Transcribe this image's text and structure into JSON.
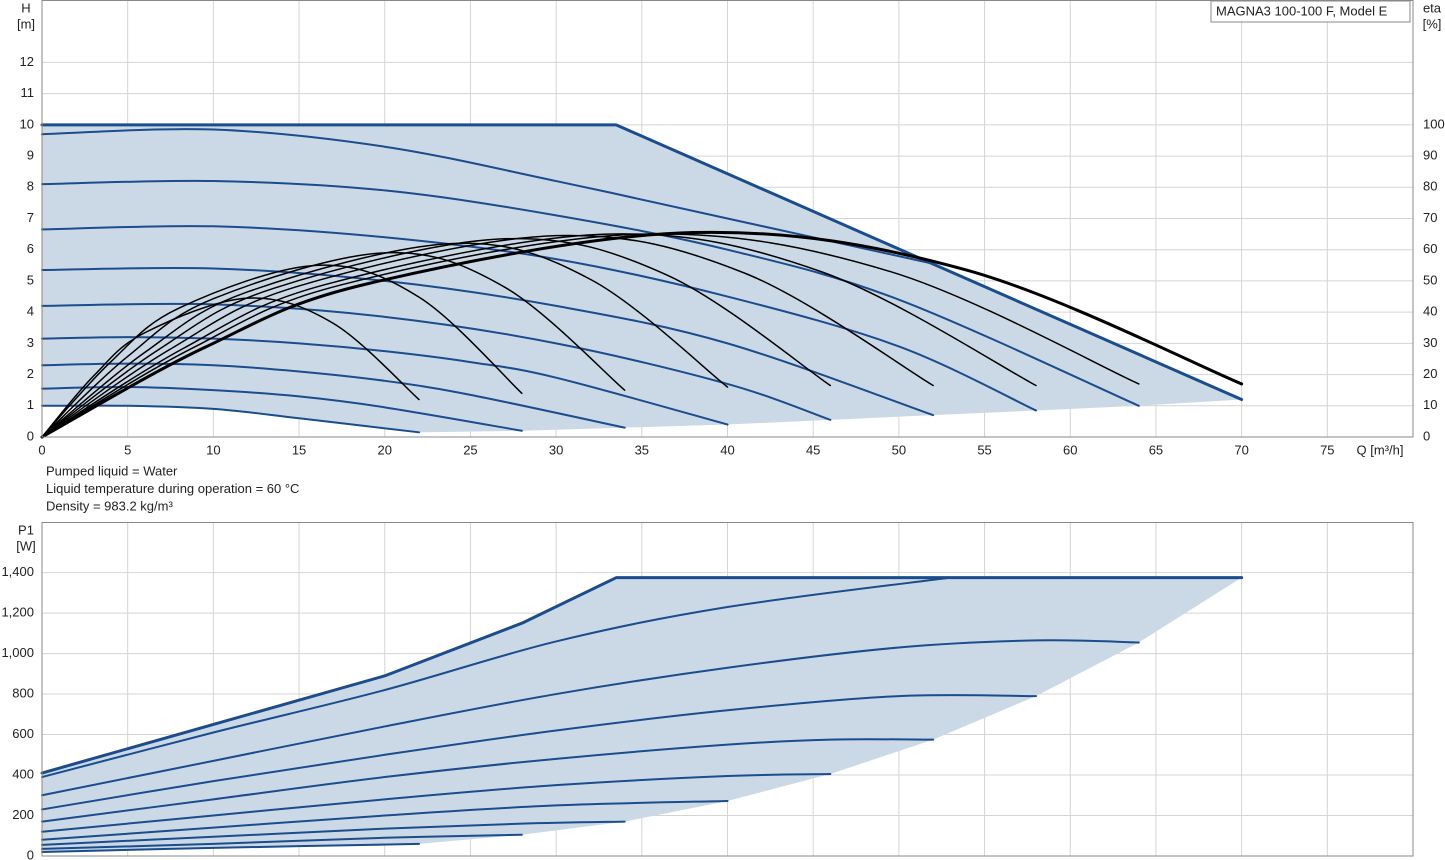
{
  "chart_data": [
    {
      "type": "line",
      "box_label": "MAGNA3 100-100 F, Model E",
      "ylabel": "H",
      "yunit": "[m]",
      "y2label": "eta",
      "y2unit": "[%]",
      "xlabel": "Q [m³/h]",
      "notes": [
        "Pumped liquid = Water",
        "Liquid temperature during operation = 60 °C",
        "Density = 983.2 kg/m³"
      ],
      "xlim": [
        0,
        80
      ],
      "xticks": [
        0,
        5,
        10,
        15,
        20,
        25,
        30,
        35,
        40,
        45,
        50,
        55,
        60,
        65,
        70,
        75
      ],
      "ylim": [
        0,
        14
      ],
      "yticks": [
        0,
        1,
        2,
        3,
        4,
        5,
        6,
        7,
        8,
        9,
        10,
        11,
        12
      ],
      "y2lim": [
        0,
        140
      ],
      "y2ticks": [
        0,
        10,
        20,
        30,
        40,
        50,
        60,
        70,
        80,
        90,
        100
      ],
      "grid": true,
      "fill_color": "#cbd9e6",
      "series": [
        {
          "color": "#1b4c8c",
          "width": 2,
          "x": [
            0,
            5,
            10,
            15,
            22
          ],
          "values": [
            1.0,
            1.0,
            0.9,
            0.6,
            0.15
          ]
        },
        {
          "color": "#1b4c8c",
          "width": 2,
          "x": [
            0,
            5,
            10,
            15,
            20,
            28
          ],
          "values": [
            1.55,
            1.6,
            1.5,
            1.3,
            0.95,
            0.2
          ]
        },
        {
          "color": "#1b4c8c",
          "width": 2,
          "x": [
            0,
            5,
            10,
            15,
            20,
            25,
            34
          ],
          "values": [
            2.3,
            2.35,
            2.3,
            2.1,
            1.8,
            1.35,
            0.3
          ]
        },
        {
          "color": "#1b4c8c",
          "width": 2,
          "x": [
            0,
            5,
            10,
            15,
            20,
            25,
            30,
            40
          ],
          "values": [
            3.15,
            3.2,
            3.15,
            3.0,
            2.75,
            2.4,
            1.9,
            0.4
          ]
        },
        {
          "color": "#1b4c8c",
          "width": 2,
          "x": [
            0,
            10,
            20,
            30,
            40,
            46
          ],
          "values": [
            4.2,
            4.25,
            3.85,
            3.0,
            1.7,
            0.55
          ]
        },
        {
          "color": "#1b4c8c",
          "width": 2,
          "x": [
            0,
            10,
            20,
            30,
            40,
            52
          ],
          "values": [
            5.35,
            5.4,
            5.0,
            4.2,
            3.0,
            0.7
          ]
        },
        {
          "color": "#1b4c8c",
          "width": 2,
          "x": [
            0,
            10,
            20,
            30,
            40,
            50,
            58
          ],
          "values": [
            6.65,
            6.75,
            6.4,
            5.7,
            4.5,
            2.9,
            0.85
          ]
        },
        {
          "color": "#1b4c8c",
          "width": 2,
          "x": [
            0,
            10,
            20,
            30,
            40,
            50,
            64
          ],
          "values": [
            8.1,
            8.2,
            7.9,
            7.1,
            6.0,
            4.4,
            1.0
          ]
        },
        {
          "color": "#1b4c8c",
          "width": 2,
          "x": [
            0,
            10,
            20,
            30,
            40,
            52
          ],
          "values": [
            9.7,
            9.85,
            9.3,
            8.2,
            7.0,
            5.55
          ]
        },
        {
          "color": "#1b4c8c",
          "width": 3,
          "smooth": false,
          "x": [
            0,
            33.5,
            70
          ],
          "values": [
            10,
            10,
            1.2
          ]
        },
        {
          "color": "#000000",
          "width": 1.5,
          "axis": "y2",
          "x": [
            0,
            3,
            6,
            12,
            17,
            22
          ],
          "values": [
            0,
            19.5,
            33.4,
            44.5,
            36.4,
            12
          ]
        },
        {
          "color": "#000000",
          "width": 1.5,
          "axis": "y2",
          "x": [
            0,
            4,
            8,
            16,
            22,
            28
          ],
          "values": [
            0,
            24,
            41.3,
            55,
            44.8,
            14
          ]
        },
        {
          "color": "#000000",
          "width": 1.5,
          "axis": "y2",
          "x": [
            0,
            5,
            10,
            20,
            27,
            34
          ],
          "values": [
            0,
            25.8,
            44.3,
            59,
            48,
            15
          ]
        },
        {
          "color": "#000000",
          "width": 1.5,
          "axis": "y2",
          "x": [
            0,
            6,
            12,
            24,
            32,
            40
          ],
          "values": [
            0,
            27.1,
            46.5,
            62,
            50.5,
            16
          ]
        },
        {
          "color": "#000000",
          "width": 1.5,
          "axis": "y2",
          "x": [
            0,
            6.75,
            13.5,
            27,
            36.5,
            46
          ],
          "values": [
            0,
            27.8,
            47.6,
            63.5,
            51.8,
            16.5
          ]
        },
        {
          "color": "#000000",
          "width": 1.5,
          "axis": "y2",
          "x": [
            0,
            7.5,
            15,
            30,
            41,
            52
          ],
          "values": [
            0,
            28.2,
            48.4,
            64.5,
            52.5,
            16.5
          ]
        },
        {
          "color": "#000000",
          "width": 1.5,
          "axis": "y2",
          "x": [
            0,
            8.25,
            16.5,
            33,
            45.5,
            58
          ],
          "values": [
            0,
            28.4,
            48.8,
            65,
            52.9,
            16.5
          ]
        },
        {
          "color": "#000000",
          "width": 1.5,
          "axis": "y2",
          "x": [
            0,
            8.75,
            17.5,
            35,
            49.5,
            64
          ],
          "values": [
            0,
            28.4,
            48.8,
            65,
            53,
            17
          ]
        },
        {
          "color": "#000000",
          "width": 3,
          "axis": "y2",
          "x": [
            0,
            9.5,
            19,
            38,
            54,
            70
          ],
          "values": [
            0,
            28.7,
            49.1,
            65.5,
            53.4,
            17
          ]
        }
      ]
    },
    {
      "type": "line",
      "ylabel": "P1",
      "yunit": "[W]",
      "xlim": [
        0,
        80
      ],
      "ylim": [
        0,
        1650
      ],
      "yticks": [
        0,
        200,
        400,
        600,
        800,
        {
          "value": 1000,
          "label": "1,000"
        },
        {
          "value": 1200,
          "label": "1,200"
        },
        {
          "value": 1400,
          "label": "1,400"
        }
      ],
      "grid": true,
      "fill_color": "#cbd9e6",
      "series": [
        {
          "color": "#1b4c8c",
          "width": 2,
          "x": [
            0,
            10,
            22
          ],
          "values": [
            20,
            40,
            60
          ]
        },
        {
          "color": "#1b4c8c",
          "width": 2,
          "x": [
            0,
            10,
            20,
            28
          ],
          "values": [
            35,
            60,
            90,
            105
          ]
        },
        {
          "color": "#1b4c8c",
          "width": 2,
          "x": [
            0,
            10,
            20,
            28,
            34
          ],
          "values": [
            55,
            95,
            135,
            160,
            170
          ]
        },
        {
          "color": "#1b4c8c",
          "width": 2,
          "x": [
            0,
            10,
            20,
            30,
            40
          ],
          "values": [
            80,
            140,
            200,
            250,
            272
          ]
        },
        {
          "color": "#1b4c8c",
          "width": 2,
          "x": [
            0,
            10,
            20,
            30,
            40,
            46
          ],
          "values": [
            120,
            200,
            280,
            350,
            395,
            405
          ]
        },
        {
          "color": "#1b4c8c",
          "width": 2,
          "x": [
            0,
            10,
            20,
            30,
            40,
            46,
            52
          ],
          "values": [
            170,
            280,
            390,
            480,
            550,
            575,
            575
          ]
        },
        {
          "color": "#1b4c8c",
          "width": 2,
          "x": [
            0,
            10,
            20,
            30,
            40,
            50,
            58
          ],
          "values": [
            230,
            370,
            500,
            620,
            720,
            790,
            790
          ]
        },
        {
          "color": "#1b4c8c",
          "width": 2,
          "x": [
            0,
            10,
            20,
            30,
            40,
            50,
            58,
            64
          ],
          "values": [
            300,
            470,
            640,
            800,
            930,
            1030,
            1065,
            1055
          ]
        },
        {
          "color": "#1b4c8c",
          "width": 2,
          "x": [
            0,
            10,
            20,
            30,
            40,
            53
          ],
          "values": [
            390,
            610,
            820,
            1060,
            1230,
            1375
          ]
        },
        {
          "color": "#1b4c8c",
          "width": 3,
          "smooth": false,
          "x": [
            0,
            10,
            20,
            28,
            33.5,
            70
          ],
          "values": [
            410,
            650,
            890,
            1150,
            1375,
            1375
          ]
        }
      ]
    }
  ]
}
